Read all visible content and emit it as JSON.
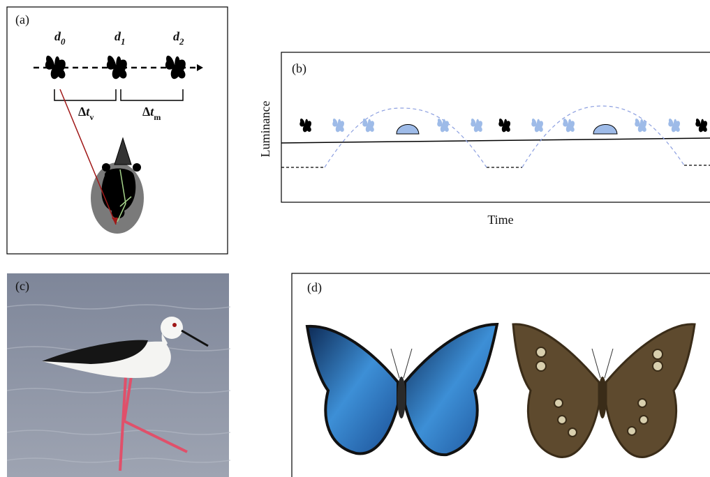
{
  "panels": [
    {
      "label": "(a)",
      "positions": [
        {
          "base": "d",
          "sub": "0"
        },
        {
          "base": "d",
          "sub": "1"
        },
        {
          "base": "d",
          "sub": "2"
        }
      ],
      "intervals": [
        {
          "delta": "Δ",
          "var": "t",
          "sub": "v"
        },
        {
          "delta": "Δ",
          "var": "t",
          "sub": "m"
        }
      ]
    },
    {
      "label": "(b)",
      "y_label": "Luminance",
      "x_label": "Time"
    },
    {
      "label": "(c)"
    },
    {
      "label": "(d)"
    }
  ]
}
